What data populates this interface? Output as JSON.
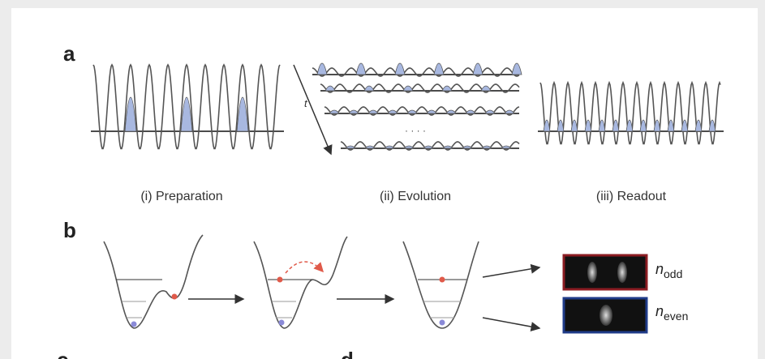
{
  "panels": {
    "a": {
      "label": "a",
      "stages": [
        "(i) Preparation",
        "(ii) Evolution",
        "(iii) Readout"
      ],
      "time_label": "t",
      "ellipsis": "· · · ·"
    },
    "b": {
      "label": "b",
      "outputs": [
        {
          "symbol": "n",
          "subscript": "odd"
        },
        {
          "symbol": "n",
          "subscript": "even"
        }
      ]
    },
    "c": {
      "label": "c"
    },
    "d": {
      "label": "d"
    }
  }
}
